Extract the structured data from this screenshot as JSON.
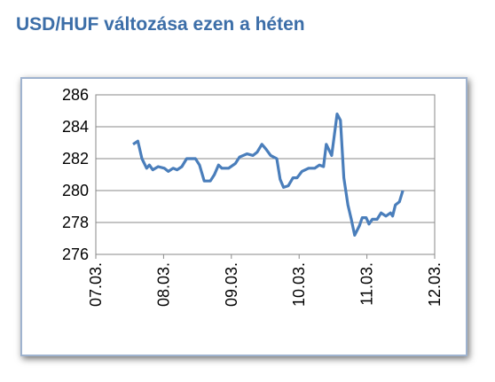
{
  "chart_data": {
    "type": "line",
    "title": "USD/HUF változása ezen a héten",
    "x": [
      0.55,
      0.62,
      0.68,
      0.75,
      0.79,
      0.84,
      0.92,
      1.01,
      1.07,
      1.14,
      1.2,
      1.27,
      1.34,
      1.47,
      1.53,
      1.6,
      1.69,
      1.75,
      1.81,
      1.86,
      1.96,
      2.06,
      2.12,
      2.23,
      2.32,
      2.38,
      2.45,
      2.51,
      2.58,
      2.67,
      2.72,
      2.77,
      2.84,
      2.91,
      2.97,
      3.04,
      3.14,
      3.23,
      3.3,
      3.36,
      3.4,
      3.48,
      3.56,
      3.61,
      3.66,
      3.72,
      3.77,
      3.82,
      3.89,
      3.93,
      3.99,
      4.03,
      4.08,
      4.15,
      4.21,
      4.28,
      4.35,
      4.38,
      4.42,
      4.48,
      4.53
    ],
    "series": [
      {
        "color": "#4a7ebb",
        "values": [
          282.9,
          283.1,
          282.0,
          281.4,
          281.6,
          281.3,
          281.5,
          281.4,
          281.2,
          281.4,
          281.3,
          281.5,
          282.0,
          282.0,
          281.6,
          280.6,
          280.6,
          281.0,
          281.6,
          281.4,
          281.4,
          281.7,
          282.1,
          282.3,
          282.2,
          282.4,
          282.9,
          282.6,
          282.2,
          282.0,
          280.7,
          280.2,
          280.3,
          280.8,
          280.8,
          281.2,
          281.4,
          281.4,
          281.6,
          281.5,
          282.9,
          282.2,
          284.8,
          284.4,
          280.8,
          279.1,
          278.2,
          277.2,
          277.8,
          278.3,
          278.3,
          277.9,
          278.2,
          278.2,
          278.6,
          278.4,
          278.6,
          278.4,
          279.1,
          279.3,
          280.0
        ]
      }
    ],
    "xlim": [
      0,
      5
    ],
    "xticks": [
      {
        "value": 0,
        "label": "07.03."
      },
      {
        "value": 1,
        "label": "08.03."
      },
      {
        "value": 2,
        "label": "09.03."
      },
      {
        "value": 3,
        "label": "10.03."
      },
      {
        "value": 4,
        "label": "11.03."
      },
      {
        "value": 5,
        "label": "12.03."
      }
    ],
    "ylim": [
      276,
      286
    ],
    "yticks": [
      276,
      278,
      280,
      282,
      284,
      286
    ],
    "grid": true
  }
}
